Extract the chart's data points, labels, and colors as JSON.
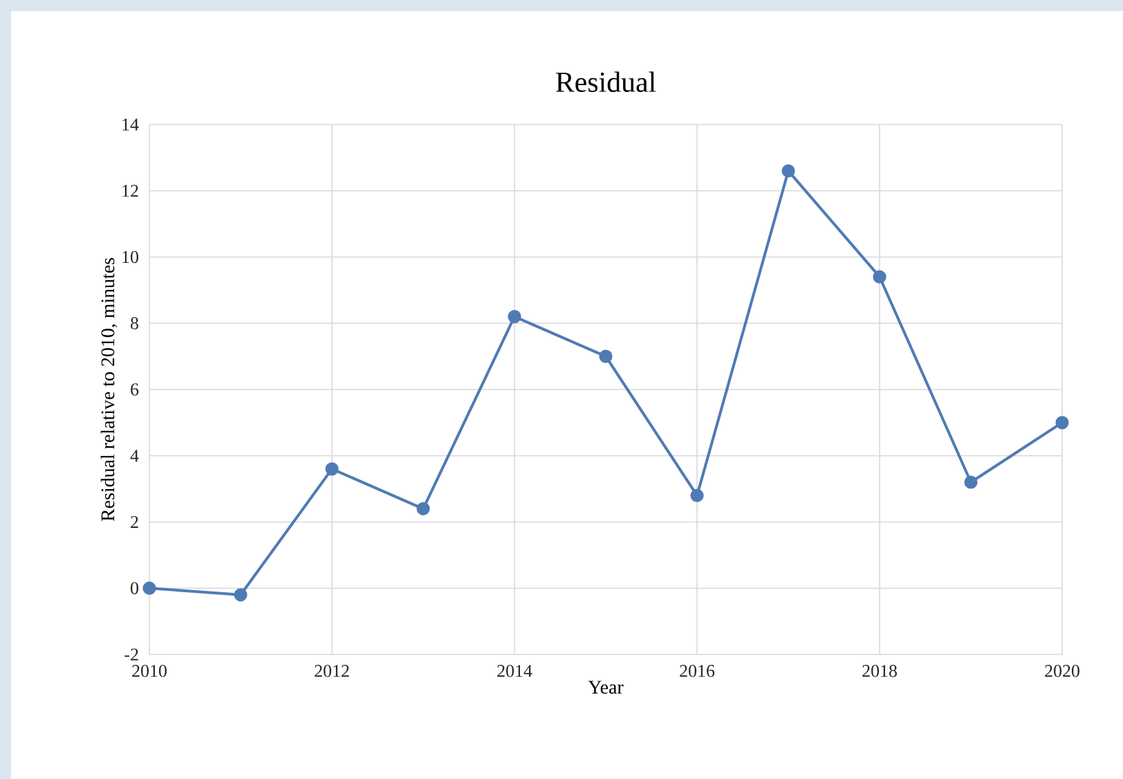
{
  "chart_data": {
    "type": "line",
    "title": "Residual",
    "xlabel": "Year",
    "ylabel": "Residual relative to 2010, minutes",
    "x": [
      2010,
      2011,
      2012,
      2013,
      2014,
      2015,
      2016,
      2017,
      2018,
      2019,
      2020
    ],
    "series": [
      {
        "color": "#4f7bb5",
        "values": [
          0,
          -0.2,
          3.6,
          2.4,
          8.2,
          7.0,
          2.8,
          12.6,
          9.4,
          3.2,
          5.0
        ]
      }
    ],
    "xlim": [
      2010,
      2020
    ],
    "xticks": [
      2010,
      2012,
      2014,
      2016,
      2018,
      2020
    ],
    "ylim": [
      -2,
      14
    ],
    "yticks": [
      -2,
      0,
      2,
      4,
      6,
      8,
      10,
      12,
      14
    ],
    "grid": true,
    "marker": "circle",
    "line_style": "solid"
  }
}
